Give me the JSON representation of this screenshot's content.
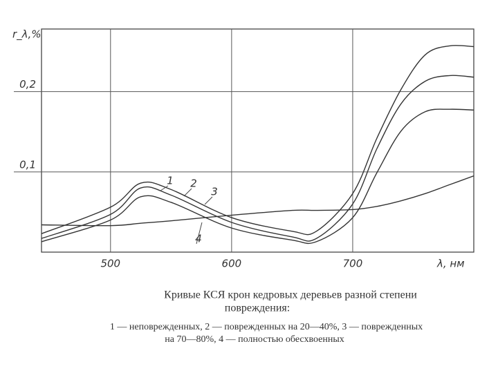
{
  "chart_data": {
    "type": "line",
    "y_label": "r_λ,%",
    "x_label": "λ, нм",
    "x": [
      443,
      500,
      525,
      550,
      600,
      650,
      670,
      700,
      720,
      740,
      760,
      780,
      800
    ],
    "series": [
      {
        "name": "1",
        "color": "#333333",
        "values": [
          0.023,
          0.056,
          0.086,
          0.078,
          0.043,
          0.026,
          0.026,
          0.073,
          0.142,
          0.203,
          0.246,
          0.257,
          0.256
        ]
      },
      {
        "name": "2",
        "color": "#333333",
        "values": [
          0.017,
          0.047,
          0.08,
          0.071,
          0.037,
          0.019,
          0.017,
          0.06,
          0.129,
          0.185,
          0.213,
          0.22,
          0.218
        ]
      },
      {
        "name": "3",
        "color": "#333333",
        "values": [
          0.013,
          0.04,
          0.069,
          0.062,
          0.03,
          0.015,
          0.013,
          0.043,
          0.099,
          0.151,
          0.175,
          0.178,
          0.177
        ]
      },
      {
        "name": "4",
        "color": "#333333",
        "values": [
          0.034,
          0.033,
          0.036,
          0.039,
          0.046,
          0.052,
          0.052,
          0.053,
          0.057,
          0.064,
          0.073,
          0.084,
          0.095
        ]
      }
    ],
    "xlim": [
      443,
      800
    ],
    "ylim": [
      0,
      0.278
    ],
    "xticks": [
      500,
      600,
      700
    ],
    "yticks": [
      {
        "value": 0.1,
        "label": "0,1"
      },
      {
        "value": 0.2,
        "label": "0,2"
      }
    ],
    "grid": true,
    "caption": [
      "Кривые КСЯ крон кедровых деревьев разной степени",
      "повреждения:",
      "1 — неповрежденных, 2 — поврежденных на 20—40%, 3 — поврежденных",
      "на 70—80%, 4 — полностью обесхвоенных"
    ]
  }
}
